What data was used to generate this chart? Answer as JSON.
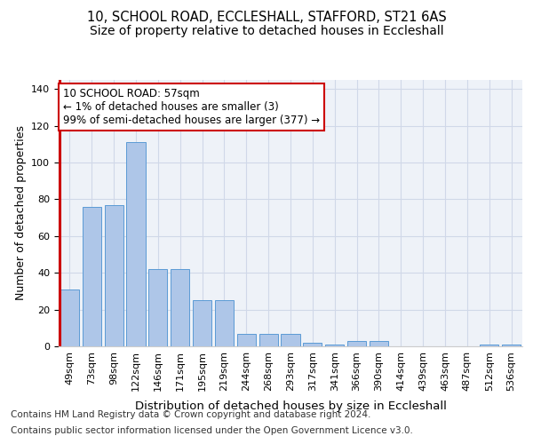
{
  "title1": "10, SCHOOL ROAD, ECCLESHALL, STAFFORD, ST21 6AS",
  "title2": "Size of property relative to detached houses in Eccleshall",
  "xlabel": "Distribution of detached houses by size in Eccleshall",
  "ylabel": "Number of detached properties",
  "categories": [
    "49sqm",
    "73sqm",
    "98sqm",
    "122sqm",
    "146sqm",
    "171sqm",
    "195sqm",
    "219sqm",
    "244sqm",
    "268sqm",
    "293sqm",
    "317sqm",
    "341sqm",
    "366sqm",
    "390sqm",
    "414sqm",
    "439sqm",
    "463sqm",
    "487sqm",
    "512sqm",
    "536sqm"
  ],
  "values": [
    31,
    76,
    77,
    111,
    42,
    42,
    25,
    25,
    7,
    7,
    7,
    2,
    1,
    3,
    3,
    0,
    0,
    0,
    0,
    1,
    1
  ],
  "bar_color": "#aec6e8",
  "bar_edge_color": "#5b9bd5",
  "highlight_color": "#cc0000",
  "annotation_line1": "10 SCHOOL ROAD: 57sqm",
  "annotation_line2": "← 1% of detached houses are smaller (3)",
  "annotation_line3": "99% of semi-detached houses are larger (377) →",
  "annotation_box_color": "#cc0000",
  "ylim": [
    0,
    145
  ],
  "yticks": [
    0,
    20,
    40,
    60,
    80,
    100,
    120,
    140
  ],
  "grid_color": "#d0d8e8",
  "background_color": "#eef2f8",
  "footer1": "Contains HM Land Registry data © Crown copyright and database right 2024.",
  "footer2": "Contains public sector information licensed under the Open Government Licence v3.0.",
  "title1_fontsize": 10.5,
  "title2_fontsize": 10,
  "xlabel_fontsize": 9.5,
  "ylabel_fontsize": 9,
  "tick_fontsize": 8,
  "annotation_fontsize": 8.5,
  "footer_fontsize": 7.5
}
